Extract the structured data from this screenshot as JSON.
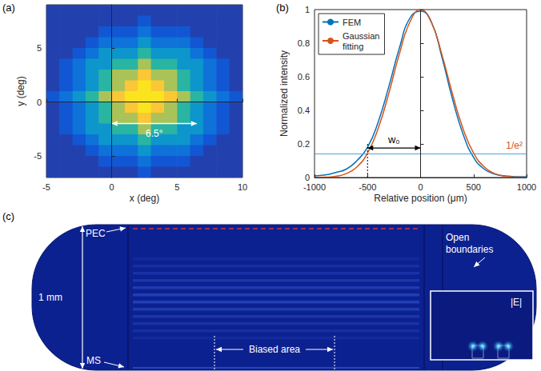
{
  "chart_data": [
    {
      "type": "heatmap",
      "panel": "(a)",
      "x_label": "x (deg)",
      "y_label": "y (deg)",
      "xlim": [
        -5,
        10
      ],
      "xticks": [
        -5,
        0,
        5,
        10
      ],
      "ylim": [
        -7,
        9
      ],
      "yticks": [
        -5,
        0,
        5
      ],
      "grid": false,
      "x": [
        -4.5,
        -3.5,
        -2.5,
        -1.5,
        -0.5,
        0.5,
        1.5,
        2.5,
        3.5,
        4.5,
        5.5,
        6.5,
        7.5,
        8.5,
        9.5
      ],
      "y": [
        8.5,
        7.5,
        6.5,
        5.5,
        4.5,
        3.5,
        2.5,
        1.5,
        0.5,
        -0.5,
        -1.5,
        -2.5,
        -3.5,
        -4.5,
        -5.5,
        -6.5
      ],
      "z": [
        [
          0.15,
          0.15,
          0.15,
          0.15,
          0.15,
          0.15,
          0.15,
          0.15,
          0.15,
          0.15,
          0.15,
          0.15,
          0.15,
          0.15,
          0.15
        ],
        [
          0.15,
          0.15,
          0.15,
          0.15,
          0.15,
          0.15,
          0.15,
          0.2,
          0.15,
          0.15,
          0.15,
          0.15,
          0.15,
          0.15,
          0.15
        ],
        [
          0.15,
          0.15,
          0.15,
          0.15,
          0.2,
          0.2,
          0.2,
          0.26,
          0.2,
          0.2,
          0.2,
          0.15,
          0.15,
          0.15,
          0.15
        ],
        [
          0.15,
          0.15,
          0.15,
          0.2,
          0.26,
          0.26,
          0.26,
          0.36,
          0.26,
          0.26,
          0.26,
          0.2,
          0.15,
          0.15,
          0.15
        ],
        [
          0.15,
          0.15,
          0.2,
          0.26,
          0.36,
          0.36,
          0.36,
          0.52,
          0.36,
          0.36,
          0.36,
          0.26,
          0.2,
          0.15,
          0.15
        ],
        [
          0.15,
          0.2,
          0.26,
          0.36,
          0.36,
          0.52,
          0.52,
          0.72,
          0.52,
          0.52,
          0.36,
          0.36,
          0.26,
          0.2,
          0.15
        ],
        [
          0.15,
          0.2,
          0.26,
          0.36,
          0.52,
          0.72,
          0.72,
          0.88,
          0.72,
          0.72,
          0.52,
          0.36,
          0.26,
          0.2,
          0.15
        ],
        [
          0.15,
          0.2,
          0.26,
          0.36,
          0.52,
          0.72,
          0.88,
          0.95,
          0.88,
          0.72,
          0.52,
          0.36,
          0.26,
          0.2,
          0.15
        ],
        [
          0.2,
          0.26,
          0.36,
          0.52,
          0.72,
          0.88,
          0.95,
          0.95,
          0.95,
          0.88,
          0.72,
          0.52,
          0.36,
          0.26,
          0.2
        ],
        [
          0.15,
          0.2,
          0.26,
          0.36,
          0.52,
          0.72,
          0.88,
          0.95,
          0.88,
          0.72,
          0.52,
          0.36,
          0.26,
          0.2,
          0.15
        ],
        [
          0.15,
          0.2,
          0.26,
          0.36,
          0.52,
          0.72,
          0.72,
          0.88,
          0.72,
          0.72,
          0.52,
          0.36,
          0.26,
          0.2,
          0.15
        ],
        [
          0.15,
          0.2,
          0.26,
          0.36,
          0.36,
          0.52,
          0.52,
          0.72,
          0.52,
          0.52,
          0.36,
          0.36,
          0.26,
          0.2,
          0.15
        ],
        [
          0.15,
          0.15,
          0.2,
          0.26,
          0.36,
          0.36,
          0.36,
          0.52,
          0.36,
          0.36,
          0.36,
          0.26,
          0.2,
          0.15,
          0.15
        ],
        [
          0.15,
          0.15,
          0.15,
          0.2,
          0.26,
          0.26,
          0.26,
          0.36,
          0.26,
          0.26,
          0.26,
          0.2,
          0.15,
          0.15,
          0.15
        ],
        [
          0.15,
          0.15,
          0.15,
          0.15,
          0.2,
          0.2,
          0.2,
          0.26,
          0.2,
          0.2,
          0.2,
          0.15,
          0.15,
          0.15,
          0.15
        ],
        [
          0.15,
          0.15,
          0.15,
          0.15,
          0.15,
          0.15,
          0.15,
          0.2,
          0.15,
          0.15,
          0.15,
          0.15,
          0.15,
          0.15,
          0.15
        ]
      ],
      "zlim": [
        0.1,
        1
      ],
      "arrow": {
        "text": "6.5°",
        "x": [
          0,
          6.5
        ],
        "y": -2
      }
    },
    {
      "type": "line",
      "panel": "(b)",
      "x_label": "Relative position (μm)",
      "y_label": "Normalized intensity",
      "xlim": [
        -1000,
        1000
      ],
      "xticks": [
        -1000,
        -500,
        0,
        500,
        1000
      ],
      "ylim": [
        0,
        1
      ],
      "yticks": [
        0,
        0.2,
        0.4,
        0.6,
        0.8,
        1
      ],
      "grid": false,
      "legend": "upper left",
      "x": [
        -1000,
        -900,
        -800,
        -700,
        -600,
        -500,
        -400,
        -300,
        -200,
        -100,
        0,
        100,
        200,
        300,
        400,
        500,
        600,
        700,
        800,
        900,
        1000
      ],
      "series": [
        {
          "name": "FEM",
          "color": "#0072bd",
          "values": [
            0.01,
            0.015,
            0.03,
            0.05,
            0.1,
            0.18,
            0.33,
            0.54,
            0.77,
            0.95,
            0.99,
            0.93,
            0.72,
            0.47,
            0.26,
            0.12,
            0.05,
            0.02,
            0.01,
            0.005,
            0.005
          ]
        },
        {
          "name": "Gaussian fitting",
          "color": "#d95319",
          "values": [
            0,
            0.002,
            0.007,
            0.023,
            0.063,
            0.146,
            0.292,
            0.5,
            0.735,
            0.926,
            1,
            0.926,
            0.735,
            0.5,
            0.292,
            0.146,
            0.063,
            0.023,
            0.007,
            0.002,
            0
          ]
        }
      ],
      "hline": {
        "value": 0.135,
        "label": "1/e²",
        "color": "#4aa6d9",
        "label_color": "#d95319"
      },
      "width_marker": {
        "label": "w₀",
        "x": [
          -500,
          0
        ],
        "y": 0.176
      }
    }
  ],
  "diagram": {
    "panel": "(c)",
    "height_label": "1 mm",
    "pec_label": "PEC",
    "boundary_label": "Open boundaries",
    "ms_label": "MS",
    "biased_label": "Biased area",
    "inset_label": "|E|"
  }
}
